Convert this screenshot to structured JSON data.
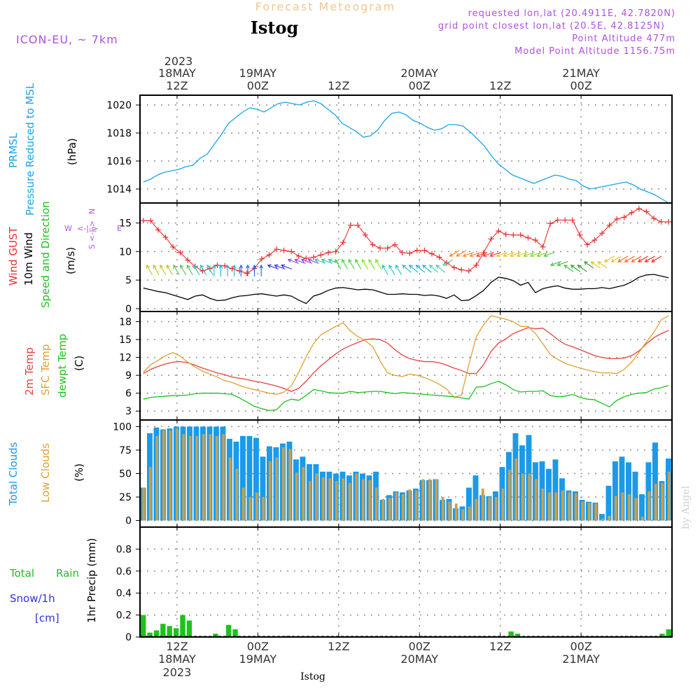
{
  "colors": {
    "pressure": "#1aa3e8",
    "gust": "#e83030",
    "wind": "#000000",
    "temp2m": "#e84040",
    "sfctemp": "#e0a030",
    "dewpt": "#20c020",
    "total_clouds": "#1a9ae8",
    "low_clouds": "#c8a050",
    "rain": "#20c020",
    "snow": "#3030e0",
    "meta": "#b050e0",
    "header": "#f0c890",
    "grid": "#909090"
  },
  "header": {
    "product": "Forecast Meteogram",
    "station": "Istog",
    "model": "ICON-EU, ~ 7km",
    "requested": "requested lon,lat (20.4911E, 42.7820N)",
    "gridpoint": "grid point closest lon,lat (20.5E, 42.8125N)",
    "altitude": "Point Altitude 477m",
    "model_altitude": "Model Point Altitude 1156.75m",
    "watermark": "by Angel"
  },
  "time_axis": {
    "top_year": "2023",
    "top_labels": [
      {
        "h": 12,
        "l1": "18MAY",
        "l2": "12Z"
      },
      {
        "h": 24,
        "l1": "19MAY",
        "l2": "00Z"
      },
      {
        "h": 36,
        "l1": "",
        "l2": "12Z"
      },
      {
        "h": 48,
        "l1": "20MAY",
        "l2": "00Z"
      },
      {
        "h": 60,
        "l1": "",
        "l2": "12Z"
      },
      {
        "h": 72,
        "l1": "21MAY",
        "l2": "00Z"
      }
    ],
    "bottom_labels": [
      {
        "h": 12,
        "l1": "12Z",
        "l2": "18MAY",
        "l3": "2023"
      },
      {
        "h": 24,
        "l1": "00Z",
        "l2": "19MAY",
        "l3": ""
      },
      {
        "h": 36,
        "l1": "12Z",
        "l2": "",
        "l3": ""
      },
      {
        "h": 48,
        "l1": "00Z",
        "l2": "20MAY",
        "l3": ""
      },
      {
        "h": 60,
        "l1": "12Z",
        "l2": "",
        "l3": ""
      },
      {
        "h": 72,
        "l1": "00Z",
        "l2": "21MAY",
        "l3": ""
      }
    ],
    "bottom_station": "Istog"
  },
  "panel_labels": {
    "pressure": {
      "l1": "PRMSL",
      "l2": "Pressure Reduced to MSL",
      "unit": "(hPa)"
    },
    "wind": {
      "l1": "Wind GUST",
      "l2": "10m Wind",
      "l3": "Speed and Direction",
      "unit": "(m/s)",
      "compass_n": "N",
      "compass_s": "S",
      "compass_w": "W",
      "compass_e": "E"
    },
    "temp": {
      "l1": "2m Temp",
      "l2": "SFC Temp",
      "l3": "dewpt Temp",
      "unit": "(C)"
    },
    "clouds": {
      "l1": "Total Clouds",
      "l2": "Low Clouds",
      "unit": "(%)"
    },
    "precip": {
      "l1": "Total",
      "l1b": "Rain",
      "l2": "Snow/1h",
      "l3": "[cm]",
      "unit": "1hr Precip (mm)"
    }
  },
  "chart_data": [
    {
      "type": "line",
      "id": "pressure",
      "ylabel": "(hPa)",
      "ylim": [
        1013,
        1020.7
      ],
      "yticks": [
        "1014",
        "1016",
        "1018",
        "1020"
      ],
      "x_start_hour": 6.5,
      "x_end_hour": 85.5,
      "series": [
        {
          "name": "PRMSL",
          "values": [
            1014.5,
            1014.7,
            1015.0,
            1015.2,
            1015.3,
            1015.4,
            1015.6,
            1015.7,
            1016.2,
            1016.5,
            1017.2,
            1017.9,
            1018.7,
            1019.1,
            1019.5,
            1019.8,
            1019.7,
            1019.5,
            1019.8,
            1020.1,
            1020.2,
            1020.1,
            1020.0,
            1020.2,
            1020.3,
            1020.1,
            1019.7,
            1019.3,
            1018.7,
            1018.4,
            1018.1,
            1017.7,
            1017.8,
            1018.2,
            1018.9,
            1019.4,
            1019.5,
            1019.3,
            1018.9,
            1018.7,
            1018.4,
            1018.2,
            1018.3,
            1018.6,
            1018.6,
            1018.5,
            1018.1,
            1017.6,
            1017.1,
            1016.4,
            1015.8,
            1015.4,
            1015.0,
            1014.8,
            1014.6,
            1014.4,
            1014.6,
            1014.8,
            1015.0,
            1014.9,
            1014.7,
            1014.6,
            1014.2,
            1014.0,
            1014.1,
            1014.2,
            1014.3,
            1014.4,
            1014.5,
            1014.3,
            1014.0,
            1013.8,
            1013.6,
            1013.3,
            1013.0
          ]
        }
      ]
    },
    {
      "type": "line",
      "id": "wind",
      "ylabel": "(m/s)",
      "ylim": [
        -0.5,
        18.5
      ],
      "yticks": [
        "0",
        "5",
        "10",
        "15"
      ],
      "x_start_hour": 6.5,
      "x_end_hour": 85.5,
      "series": [
        {
          "name": "Wind GUST",
          "values": [
            15.4,
            15.4,
            13.8,
            12.5,
            10.8,
            9.8,
            8.5,
            7.4,
            6.6,
            7.0,
            7.6,
            7.5,
            7.0,
            6.6,
            6.2,
            7.0,
            8.7,
            9.4,
            10.4,
            10.2,
            10.0,
            9.2,
            8.8,
            9.0,
            9.4,
            9.8,
            10.0,
            11.6,
            14.6,
            14.6,
            12.9,
            11.2,
            10.6,
            10.6,
            11.2,
            9.8,
            9.7,
            10.2,
            10.2,
            9.6,
            9.0,
            8.0,
            7.2,
            6.8,
            6.6,
            7.6,
            9.8,
            12.2,
            13.6,
            13.0,
            12.9,
            12.9,
            12.4,
            12.0,
            10.8,
            14.9,
            15.5,
            15.5,
            15.5,
            12.9,
            11.2,
            12.0,
            13.2,
            14.6,
            15.7,
            16.0,
            16.8,
            17.5,
            17.0,
            15.8,
            15.2,
            15.2
          ]
        },
        {
          "name": "10m Wind",
          "values": [
            3.6,
            3.3,
            3.0,
            2.8,
            2.4,
            2.0,
            1.6,
            2.2,
            2.4,
            1.8,
            1.4,
            1.5,
            1.9,
            2.2,
            2.3,
            2.5,
            2.6,
            2.4,
            2.2,
            2.4,
            2.2,
            1.5,
            0.9,
            2.2,
            2.6,
            3.2,
            3.6,
            3.7,
            3.5,
            3.3,
            3.4,
            3.3,
            2.9,
            2.5,
            2.5,
            2.6,
            2.5,
            2.5,
            2.3,
            2.4,
            2.2,
            1.8,
            2.4,
            1.4,
            1.5,
            2.3,
            3.2,
            4.6,
            5.5,
            5.3,
            4.9,
            4.1,
            4.6,
            2.8,
            3.5,
            3.8,
            4.0,
            3.6,
            3.4,
            3.4,
            3.5,
            3.5,
            3.7,
            3.5,
            3.8,
            4.1,
            4.7,
            5.5,
            5.9,
            6.0,
            5.7,
            5.4
          ]
        }
      ]
    },
    {
      "type": "line",
      "id": "temp",
      "ylabel": "(C)",
      "ylim": [
        1.5,
        19.7
      ],
      "yticks": [
        "3",
        "6",
        "9",
        "12",
        "15",
        "18"
      ],
      "x_start_hour": 6.5,
      "x_end_hour": 85.5,
      "series": [
        {
          "name": "2m Temp",
          "values": [
            9.3,
            10.0,
            10.5,
            10.9,
            11.2,
            11.3,
            11.1,
            10.7,
            10.2,
            9.8,
            9.4,
            9.1,
            8.7,
            8.5,
            8.3,
            8.0,
            7.8,
            7.5,
            7.2,
            6.8,
            6.3,
            6.8,
            8.0,
            9.4,
            10.6,
            11.6,
            12.6,
            13.4,
            14.0,
            14.5,
            15.0,
            15.1,
            15.0,
            14.4,
            13.3,
            12.4,
            11.8,
            11.5,
            11.3,
            11.3,
            11.1,
            10.7,
            10.2,
            9.8,
            9.3,
            9.3,
            10.8,
            13.0,
            14.4,
            15.1,
            16.0,
            16.5,
            17.0,
            16.8,
            16.9,
            16.0,
            15.0,
            14.2,
            13.8,
            13.3,
            12.8,
            12.3,
            12.0,
            11.8,
            11.8,
            11.9,
            12.3,
            13.1,
            14.3,
            15.3,
            16.0,
            16.5
          ]
        },
        {
          "name": "SFC Temp",
          "values": [
            9.5,
            10.8,
            11.5,
            12.3,
            12.8,
            12.2,
            11.2,
            10.4,
            9.7,
            9.2,
            8.7,
            8.1,
            7.8,
            7.3,
            6.9,
            6.6,
            6.3,
            6.0,
            5.8,
            6.2,
            7.2,
            9.5,
            12.1,
            14.3,
            15.8,
            16.5,
            17.2,
            17.8,
            16.4,
            15.5,
            14.8,
            13.8,
            11.4,
            9.4,
            9.0,
            8.8,
            9.2,
            9.0,
            8.6,
            8.1,
            7.5,
            6.7,
            5.3,
            5.7,
            10.8,
            15.5,
            17.5,
            19.0,
            18.7,
            18.4,
            18.0,
            17.2,
            17.2,
            16.0,
            14.3,
            12.5,
            11.7,
            11.0,
            10.6,
            10.2,
            9.9,
            9.6,
            9.4,
            9.4,
            9.3,
            10.0,
            11.2,
            12.9,
            14.6,
            16.2,
            18.3,
            19.0
          ]
        },
        {
          "name": "dewpt Temp",
          "values": [
            5.0,
            5.3,
            5.4,
            5.5,
            5.6,
            5.6,
            5.7,
            5.9,
            6.0,
            6.0,
            6.0,
            5.9,
            5.8,
            5.2,
            4.5,
            3.8,
            3.4,
            3.1,
            3.2,
            4.5,
            5.0,
            4.8,
            5.6,
            6.6,
            6.4,
            6.1,
            6.0,
            6.0,
            6.3,
            6.1,
            6.2,
            6.3,
            6.3,
            6.1,
            5.9,
            6.1,
            6.0,
            5.9,
            5.8,
            5.7,
            5.6,
            5.5,
            5.4,
            5.2,
            5.0,
            7.0,
            7.1,
            7.6,
            8.0,
            7.4,
            6.6,
            6.2,
            6.3,
            6.3,
            6.4,
            5.6,
            5.4,
            5.5,
            5.8,
            5.3,
            5.0,
            4.9,
            4.3,
            3.7,
            4.8,
            5.4,
            5.8,
            6.0,
            6.1,
            6.7,
            6.9,
            7.3
          ]
        }
      ]
    },
    {
      "type": "bar",
      "id": "clouds",
      "ylabel": "(%)",
      "ylim": [
        -7,
        107
      ],
      "yticks": [
        "0",
        "25",
        "50",
        "75",
        "100"
      ],
      "x_start_hour": 6.5,
      "x_end_hour": 85.5,
      "series": [
        {
          "name": "Total Clouds",
          "values": [
            35,
            93,
            99,
            97,
            98,
            100,
            100,
            100,
            100,
            100,
            100,
            100,
            100,
            87,
            84,
            90,
            90,
            88,
            68,
            79,
            78,
            82,
            84,
            65,
            68,
            60,
            60,
            52,
            52,
            50,
            52,
            48,
            52,
            50,
            48,
            52,
            22,
            27,
            31,
            30,
            32,
            34,
            43,
            43,
            44,
            22,
            23,
            13,
            15,
            35,
            48,
            27,
            26,
            31,
            57,
            73,
            93,
            80,
            91,
            62,
            63,
            55,
            65,
            45,
            32,
            31,
            22,
            20,
            19,
            7,
            37,
            63,
            68,
            62,
            52,
            28,
            62,
            83,
            42,
            66
          ]
        },
        {
          "name": "Low Clouds",
          "values": [
            35,
            57,
            90,
            96,
            96,
            98,
            92,
            90,
            90,
            92,
            92,
            90,
            92,
            67,
            55,
            35,
            25,
            30,
            25,
            63,
            67,
            78,
            76,
            51,
            57,
            42,
            50,
            46,
            45,
            42,
            45,
            40,
            50,
            44,
            43,
            35,
            23,
            24,
            30,
            28,
            33,
            32,
            44,
            44,
            44,
            25,
            20,
            18,
            12,
            15,
            23,
            34,
            25,
            25,
            34,
            54,
            66,
            50,
            50,
            44,
            34,
            30,
            30,
            32,
            30,
            29,
            20,
            19,
            18,
            2,
            5,
            26,
            30,
            28,
            24,
            4,
            31,
            39,
            40,
            52
          ]
        }
      ]
    },
    {
      "type": "bar",
      "id": "precip",
      "ylabel": "1hr Precip (mm)",
      "ylim": [
        0,
        1
      ],
      "yticks": [
        "0",
        "0.2",
        "0.4",
        "0.6",
        "0.8"
      ],
      "x_start_hour": 6.5,
      "x_end_hour": 85.5,
      "series": [
        {
          "name": "Total Rain",
          "values": [
            0.2,
            0.04,
            0.06,
            0.12,
            0.1,
            0.08,
            0.2,
            0.15,
            0,
            0,
            0,
            0.03,
            0,
            0.11,
            0.07,
            0,
            0,
            0,
            0,
            0,
            0,
            0,
            0.01,
            0,
            0,
            0,
            0,
            0,
            0,
            0,
            0,
            0,
            0,
            0,
            0,
            0,
            0,
            0,
            0,
            0,
            0,
            0,
            0,
            0,
            0,
            0,
            0,
            0,
            0,
            0,
            0,
            0,
            0,
            0,
            0,
            0,
            0.05,
            0.03,
            0,
            0,
            0,
            0,
            0,
            0,
            0,
            0,
            0,
            0,
            0,
            0,
            0,
            0,
            0,
            0,
            0,
            0,
            0,
            0,
            0,
            0.03,
            0.07
          ]
        },
        {
          "name": "Snow/1h",
          "values": []
        }
      ]
    }
  ]
}
